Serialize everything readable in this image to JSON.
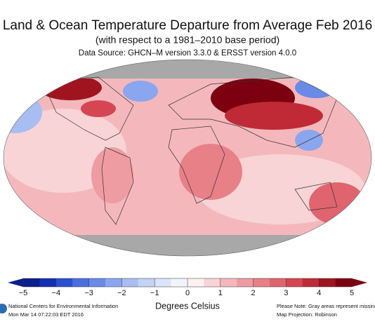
{
  "header": {
    "title": "Land & Ocean Temperature Departure from Average Feb 2016",
    "subtitle": "(with respect to a 1981–2010 base period)",
    "source": "Data Source: GHCN–M version 3.3.0 & ERSST version 4.0.0"
  },
  "colorbar": {
    "label": "Degrees Celsius",
    "xlim": [
      -5,
      5
    ],
    "ticks": [
      {
        "value": -5,
        "label": "−5"
      },
      {
        "value": -4,
        "label": "−4"
      },
      {
        "value": -3,
        "label": "−3"
      },
      {
        "value": -2,
        "label": "−2"
      },
      {
        "value": -1,
        "label": "−1"
      },
      0,
      1,
      2,
      3,
      4,
      5
    ],
    "colors": [
      "#0a1e8c",
      "#1230b4",
      "#2a4fd0",
      "#4a6ee0",
      "#6a8ae8",
      "#8aa6ee",
      "#a8bef2",
      "#c4d2f6",
      "#dce4fa",
      "#f2f4fc",
      "#fcf0f0",
      "#f8d4d6",
      "#f4b8bc",
      "#ee9ca2",
      "#e88088",
      "#e0646e",
      "#d44652",
      "#c02a36",
      "#a01420",
      "#7c0010"
    ]
  },
  "footer": {
    "org": "National Centers for Environmental Information",
    "timestamp": "Mon Mar 14 07:22:03 EDT 2016",
    "note": "Please Note: Gray areas represent missing",
    "projection": "Map Projection: Robinson"
  }
}
